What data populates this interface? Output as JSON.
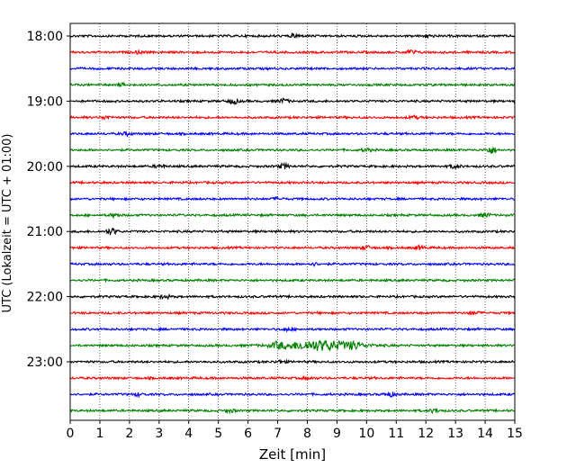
{
  "chart_data": {
    "type": "line",
    "title": "",
    "xlabel": "Zeit  [min]",
    "ylabel": "UTC (Lokalzeit = UTC + 01:00)",
    "xlim": [
      0,
      15
    ],
    "x_ticks": [
      "0",
      "1",
      "2",
      "3",
      "4",
      "5",
      "6",
      "7",
      "8",
      "9",
      "10",
      "11",
      "12",
      "13",
      "14",
      "15"
    ],
    "y_ticks": [
      {
        "label": "18:00",
        "trace": 0
      },
      {
        "label": "19:00",
        "trace": 4
      },
      {
        "label": "20:00",
        "trace": 8
      },
      {
        "label": "21:00",
        "trace": 12
      },
      {
        "label": "22:00",
        "trace": 16
      },
      {
        "label": "23:00",
        "trace": 20
      }
    ],
    "grid": "vertical, dotted",
    "trace_interval_min": 15,
    "color_cycle": [
      "#000000",
      "#ff0000",
      "#0000ff",
      "#008000"
    ],
    "traces": [
      {
        "start": "18:00",
        "color": "#000000",
        "events": [
          {
            "t": 7.6,
            "amp": 0.25
          },
          {
            "t": 12.1,
            "amp": 0.2
          }
        ]
      },
      {
        "start": "18:15",
        "color": "#ff0000",
        "events": [
          {
            "t": 11.5,
            "amp": 0.3
          },
          {
            "t": 2.3,
            "amp": 0.15
          }
        ]
      },
      {
        "start": "18:30",
        "color": "#0000ff",
        "events": []
      },
      {
        "start": "18:45",
        "color": "#008000",
        "events": [
          {
            "t": 1.8,
            "amp": 0.2
          }
        ]
      },
      {
        "start": "19:00",
        "color": "#000000",
        "events": [
          {
            "t": 5.5,
            "amp": 0.35
          },
          {
            "t": 7.2,
            "amp": 0.3
          }
        ]
      },
      {
        "start": "19:15",
        "color": "#ff0000",
        "events": [
          {
            "t": 1.2,
            "amp": 0.2
          },
          {
            "t": 11.6,
            "amp": 0.2
          }
        ]
      },
      {
        "start": "19:30",
        "color": "#0000ff",
        "events": [
          {
            "t": 1.9,
            "amp": 0.2
          }
        ]
      },
      {
        "start": "19:45",
        "color": "#008000",
        "events": [
          {
            "t": 14.2,
            "amp": 0.5
          },
          {
            "t": 10.0,
            "amp": 0.2
          }
        ]
      },
      {
        "start": "20:00",
        "color": "#000000",
        "events": [
          {
            "t": 7.2,
            "amp": 0.35
          },
          {
            "t": 13.0,
            "amp": 0.3
          },
          {
            "t": 3.0,
            "amp": 0.2
          }
        ]
      },
      {
        "start": "20:15",
        "color": "#ff0000",
        "events": []
      },
      {
        "start": "20:30",
        "color": "#0000ff",
        "events": [
          {
            "t": 7.0,
            "amp": 0.15
          }
        ]
      },
      {
        "start": "20:45",
        "color": "#008000",
        "events": [
          {
            "t": 1.5,
            "amp": 0.25
          },
          {
            "t": 14.0,
            "amp": 0.3
          }
        ]
      },
      {
        "start": "21:00",
        "color": "#000000",
        "events": [
          {
            "t": 1.4,
            "amp": 0.45
          }
        ]
      },
      {
        "start": "21:15",
        "color": "#ff0000",
        "events": [
          {
            "t": 10.0,
            "amp": 0.25
          },
          {
            "t": 11.8,
            "amp": 0.25
          }
        ]
      },
      {
        "start": "21:30",
        "color": "#0000ff",
        "events": [
          {
            "t": 8.2,
            "amp": 0.2
          }
        ]
      },
      {
        "start": "21:45",
        "color": "#008000",
        "events": []
      },
      {
        "start": "22:00",
        "color": "#000000",
        "events": [
          {
            "t": 3.2,
            "amp": 0.25
          }
        ]
      },
      {
        "start": "22:15",
        "color": "#ff0000",
        "events": [
          {
            "t": 13.6,
            "amp": 0.25
          }
        ]
      },
      {
        "start": "22:30",
        "color": "#0000ff",
        "events": [
          {
            "t": 7.3,
            "amp": 0.2
          }
        ]
      },
      {
        "start": "22:45",
        "color": "#008000",
        "events": [
          {
            "t": 8.4,
            "amp": 0.75
          },
          {
            "t": 7.0,
            "amp": 0.35
          },
          {
            "t": 9.6,
            "amp": 0.35
          }
        ]
      },
      {
        "start": "23:00",
        "color": "#000000",
        "events": [
          {
            "t": 7.1,
            "amp": 0.2
          }
        ]
      },
      {
        "start": "23:15",
        "color": "#ff0000",
        "events": [
          {
            "t": 8.0,
            "amp": 0.15
          }
        ]
      },
      {
        "start": "23:30",
        "color": "#0000ff",
        "events": [
          {
            "t": 2.3,
            "amp": 0.2
          },
          {
            "t": 10.8,
            "amp": 0.3
          }
        ]
      },
      {
        "start": "23:45",
        "color": "#008000",
        "events": [
          {
            "t": 12.3,
            "amp": 0.3
          },
          {
            "t": 5.4,
            "amp": 0.2
          }
        ]
      }
    ]
  }
}
